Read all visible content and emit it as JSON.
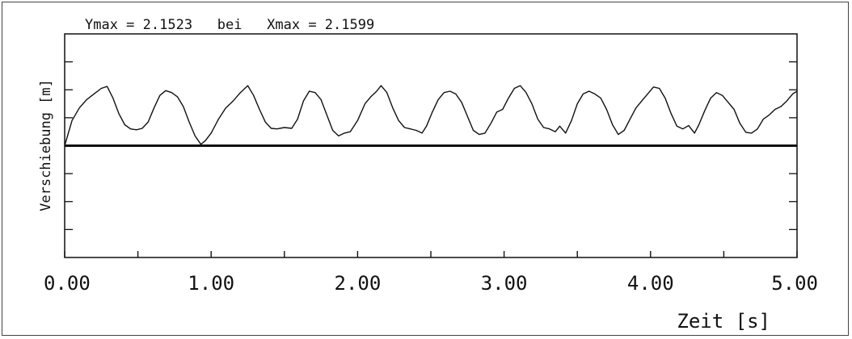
{
  "chart_data": {
    "type": "line",
    "title": "Ymax = 2.1523   bei   Xmax = 2.1599",
    "xlabel": "Zeit [s]",
    "ylabel": "Verschiebung [m]",
    "xlim": [
      0,
      5
    ],
    "ylim": [
      -4,
      4
    ],
    "x_ticks": [
      "0.00",
      "1.00",
      "2.00",
      "3.00",
      "4.00",
      "5.00"
    ],
    "y_tick_count": 8,
    "grid": false,
    "baseline": 0,
    "series": [
      {
        "values": [
          [
            0.0,
            0.0
          ],
          [
            0.05,
            0.9
          ],
          [
            0.1,
            1.35
          ],
          [
            0.15,
            1.65
          ],
          [
            0.2,
            1.85
          ],
          [
            0.25,
            2.05
          ],
          [
            0.29,
            2.12
          ],
          [
            0.33,
            1.7
          ],
          [
            0.37,
            1.15
          ],
          [
            0.41,
            0.75
          ],
          [
            0.45,
            0.6
          ],
          [
            0.49,
            0.57
          ],
          [
            0.53,
            0.62
          ],
          [
            0.57,
            0.85
          ],
          [
            0.61,
            1.35
          ],
          [
            0.65,
            1.8
          ],
          [
            0.69,
            1.97
          ],
          [
            0.73,
            1.9
          ],
          [
            0.77,
            1.75
          ],
          [
            0.81,
            1.4
          ],
          [
            0.85,
            0.85
          ],
          [
            0.89,
            0.35
          ],
          [
            0.93,
            0.05
          ],
          [
            0.96,
            0.18
          ],
          [
            1.0,
            0.45
          ],
          [
            1.05,
            0.95
          ],
          [
            1.1,
            1.35
          ],
          [
            1.15,
            1.6
          ],
          [
            1.2,
            1.9
          ],
          [
            1.25,
            2.15
          ],
          [
            1.29,
            1.8
          ],
          [
            1.33,
            1.3
          ],
          [
            1.37,
            0.85
          ],
          [
            1.41,
            0.62
          ],
          [
            1.45,
            0.6
          ],
          [
            1.5,
            0.65
          ],
          [
            1.55,
            0.62
          ],
          [
            1.59,
            0.95
          ],
          [
            1.63,
            1.6
          ],
          [
            1.67,
            1.95
          ],
          [
            1.71,
            1.9
          ],
          [
            1.75,
            1.65
          ],
          [
            1.79,
            1.1
          ],
          [
            1.83,
            0.55
          ],
          [
            1.87,
            0.35
          ],
          [
            1.91,
            0.45
          ],
          [
            1.95,
            0.5
          ],
          [
            2.0,
            0.9
          ],
          [
            2.05,
            1.5
          ],
          [
            2.09,
            1.75
          ],
          [
            2.13,
            1.95
          ],
          [
            2.16,
            2.15
          ],
          [
            2.2,
            1.9
          ],
          [
            2.24,
            1.35
          ],
          [
            2.28,
            0.9
          ],
          [
            2.32,
            0.65
          ],
          [
            2.36,
            0.6
          ],
          [
            2.4,
            0.55
          ],
          [
            2.44,
            0.45
          ],
          [
            2.47,
            0.7
          ],
          [
            2.51,
            1.2
          ],
          [
            2.55,
            1.65
          ],
          [
            2.59,
            1.9
          ],
          [
            2.63,
            1.95
          ],
          [
            2.67,
            1.85
          ],
          [
            2.71,
            1.55
          ],
          [
            2.75,
            1.05
          ],
          [
            2.79,
            0.55
          ],
          [
            2.83,
            0.4
          ],
          [
            2.87,
            0.45
          ],
          [
            2.91,
            0.8
          ],
          [
            2.95,
            1.2
          ],
          [
            2.99,
            1.3
          ],
          [
            3.03,
            1.7
          ],
          [
            3.07,
            2.05
          ],
          [
            3.11,
            2.15
          ],
          [
            3.15,
            1.9
          ],
          [
            3.19,
            1.5
          ],
          [
            3.23,
            0.95
          ],
          [
            3.27,
            0.65
          ],
          [
            3.31,
            0.6
          ],
          [
            3.35,
            0.5
          ],
          [
            3.38,
            0.7
          ],
          [
            3.42,
            0.45
          ],
          [
            3.46,
            0.9
          ],
          [
            3.5,
            1.5
          ],
          [
            3.54,
            1.85
          ],
          [
            3.58,
            1.95
          ],
          [
            3.62,
            1.85
          ],
          [
            3.66,
            1.7
          ],
          [
            3.7,
            1.3
          ],
          [
            3.74,
            0.75
          ],
          [
            3.78,
            0.4
          ],
          [
            3.82,
            0.55
          ],
          [
            3.86,
            0.95
          ],
          [
            3.9,
            1.35
          ],
          [
            3.94,
            1.6
          ],
          [
            3.98,
            1.85
          ],
          [
            4.02,
            2.1
          ],
          [
            4.06,
            2.05
          ],
          [
            4.1,
            1.7
          ],
          [
            4.14,
            1.15
          ],
          [
            4.18,
            0.7
          ],
          [
            4.22,
            0.6
          ],
          [
            4.26,
            0.72
          ],
          [
            4.3,
            0.45
          ],
          [
            4.33,
            0.75
          ],
          [
            4.37,
            1.25
          ],
          [
            4.41,
            1.7
          ],
          [
            4.45,
            1.9
          ],
          [
            4.49,
            1.8
          ],
          [
            4.53,
            1.55
          ],
          [
            4.57,
            1.3
          ],
          [
            4.61,
            0.8
          ],
          [
            4.65,
            0.48
          ],
          [
            4.69,
            0.45
          ],
          [
            4.73,
            0.6
          ],
          [
            4.77,
            0.95
          ],
          [
            4.81,
            1.1
          ],
          [
            4.85,
            1.3
          ],
          [
            4.89,
            1.4
          ],
          [
            4.93,
            1.6
          ],
          [
            4.97,
            1.85
          ],
          [
            5.0,
            1.95
          ]
        ]
      }
    ]
  }
}
